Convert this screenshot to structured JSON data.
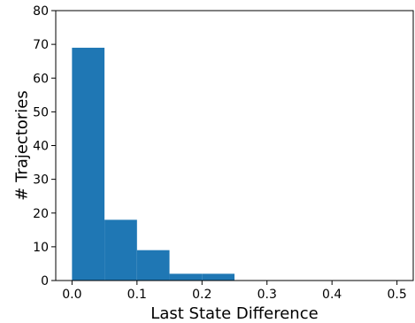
{
  "chart_data": {
    "type": "bar",
    "chart_kind": "histogram",
    "bins": [
      {
        "start": 0.0,
        "end": 0.05,
        "count": 69
      },
      {
        "start": 0.05,
        "end": 0.1,
        "count": 18
      },
      {
        "start": 0.1,
        "end": 0.15,
        "count": 9
      },
      {
        "start": 0.15,
        "end": 0.2,
        "count": 2
      },
      {
        "start": 0.2,
        "end": 0.25,
        "count": 2
      },
      {
        "start": 0.25,
        "end": 0.3,
        "count": 0
      },
      {
        "start": 0.3,
        "end": 0.35,
        "count": 0
      },
      {
        "start": 0.35,
        "end": 0.4,
        "count": 0
      },
      {
        "start": 0.4,
        "end": 0.45,
        "count": 0
      },
      {
        "start": 0.45,
        "end": 0.5,
        "count": 0
      }
    ],
    "title": "",
    "xlabel": "Last State Difference",
    "ylabel": "# Trajectories",
    "xlim": [
      -0.025,
      0.525
    ],
    "ylim": [
      0,
      80
    ],
    "xticks": [
      "0.0",
      "0.1",
      "0.2",
      "0.3",
      "0.4",
      "0.5"
    ],
    "yticks": [
      "0",
      "10",
      "20",
      "30",
      "40",
      "50",
      "60",
      "70",
      "80"
    ],
    "grid": false,
    "legend": "none",
    "bar_color": "#1f77b4"
  }
}
